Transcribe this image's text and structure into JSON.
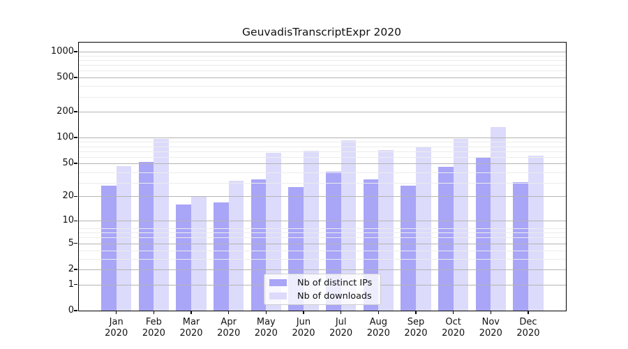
{
  "title": "GeuvadisTranscriptExpr 2020",
  "chart_data": {
    "type": "bar",
    "title": "GeuvadisTranscriptExpr 2020",
    "xlabel": "",
    "ylabel": "",
    "scale": "log10(1+x)",
    "grid": true,
    "legend_position": "lower center",
    "categories": [
      "Jan",
      "Feb",
      "Mar",
      "Apr",
      "May",
      "Jun",
      "Jul",
      "Aug",
      "Sep",
      "Oct",
      "Nov",
      "Dec"
    ],
    "category_year": "2020",
    "series": [
      {
        "name": "Nb of distinct IPs",
        "color": "#a9a5f7",
        "values": [
          27,
          52,
          16,
          17,
          32,
          26,
          40,
          32,
          27,
          45,
          58,
          30
        ]
      },
      {
        "name": "Nb of downloads",
        "color": "#dcdbfb",
        "values": [
          46,
          96,
          20,
          31,
          66,
          70,
          93,
          71,
          77,
          96,
          133,
          61
        ]
      }
    ],
    "yticks": [
      0,
      1,
      2,
      5,
      10,
      20,
      50,
      100,
      200,
      500,
      1000
    ],
    "minor_gridline_values_1plus": [
      4,
      5,
      7,
      8,
      9,
      30,
      40,
      60,
      70,
      80,
      90,
      300,
      400,
      600,
      700,
      800,
      900
    ],
    "ylim": [
      0,
      1200
    ]
  },
  "colors": {
    "major_grid": "#b4b4b4",
    "minor_grid": "#ececec",
    "spine": "#000000",
    "background": "#ffffff"
  }
}
